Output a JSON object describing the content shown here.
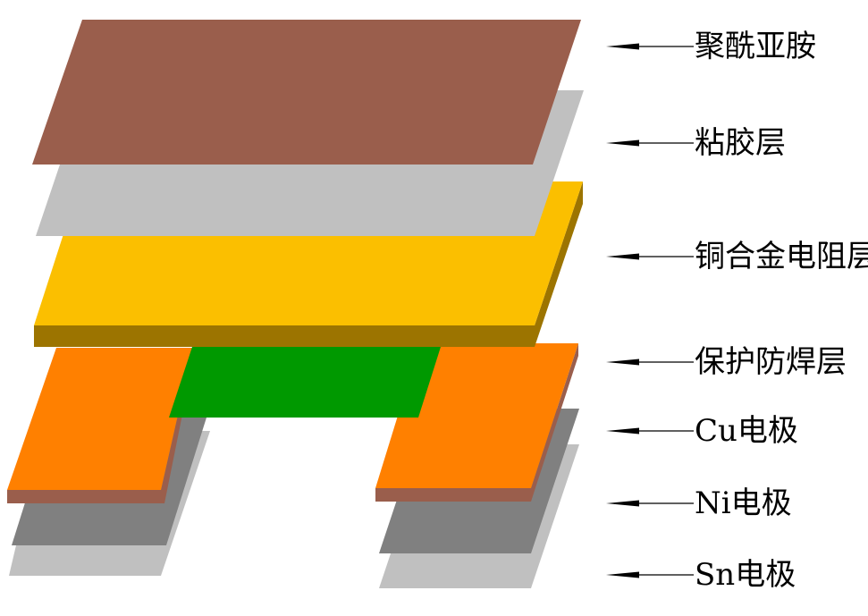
{
  "colors": {
    "polyimide": "#9A5E4C",
    "adhesive": "#C0C0C0",
    "resistor_top": "#FBBF00",
    "resistor_edge": "#9C7400",
    "solder_mask": "#009900",
    "cu": "#FF8000",
    "cu_edge": "#9A5E4C",
    "ni": "#808080",
    "sn": "#C0C0C0"
  },
  "labels": [
    {
      "text": "聚酰亚胺"
    },
    {
      "text": "粘胶层"
    },
    {
      "text": "铜合金电阻层"
    },
    {
      "text": "保护防焊层"
    },
    {
      "text": "Cu电极"
    },
    {
      "text": "Ni电极"
    },
    {
      "text": "Sn电极"
    }
  ]
}
